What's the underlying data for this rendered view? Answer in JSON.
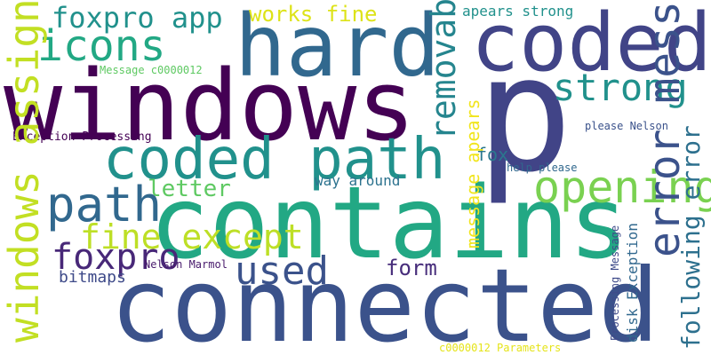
{
  "words": [
    {
      "text": "p",
      "color": "#414487"
    },
    {
      "text": "contains",
      "color": "#22A884"
    },
    {
      "text": "connected",
      "color": "#3B528B"
    },
    {
      "text": "windows",
      "color": "#440154"
    },
    {
      "text": "hard",
      "color": "#31688E"
    },
    {
      "text": "coded",
      "color": "#414487"
    },
    {
      "text": "coded path",
      "color": "#21918C"
    },
    {
      "text": "path",
      "color": "#31688E"
    },
    {
      "text": "icons",
      "color": "#22A884"
    },
    {
      "text": "foxpro app",
      "color": "#21918C"
    },
    {
      "text": "works fine",
      "color": "#DDE318"
    },
    {
      "text": "apears strong",
      "color": "#21918C"
    },
    {
      "text": "strong",
      "color": "#21918C"
    },
    {
      "text": "opening",
      "color": "#7AD151"
    },
    {
      "text": "used",
      "color": "#3B528B"
    },
    {
      "text": "foxpro",
      "color": "#482878"
    },
    {
      "text": "fine except",
      "color": "#BDDF26"
    },
    {
      "text": "letter",
      "color": "#5EC962"
    },
    {
      "text": "form",
      "color": "#472D7B"
    },
    {
      "text": "fox",
      "color": "#2A788E"
    },
    {
      "text": "bitmaps",
      "color": "#3E4A89"
    },
    {
      "text": "way around",
      "color": "#2C728E"
    },
    {
      "text": "removable drive",
      "color": "#25858E"
    },
    {
      "text": "error message",
      "color": "#3B528B"
    },
    {
      "text": "following error",
      "color": "#2D708E"
    },
    {
      "text": "windows assigns",
      "color": "#C2DF23"
    },
    {
      "text": "message apears",
      "color": "#F1E51D"
    },
    {
      "text": "disk Exception",
      "color": "#31688E"
    },
    {
      "text": "Processing Message",
      "color": "#3E4A89"
    },
    {
      "text": "Exception Processing",
      "color": "#440154"
    },
    {
      "text": "Message c0000012",
      "color": "#5EC962"
    },
    {
      "text": "please Nelson",
      "color": "#3B528B"
    },
    {
      "text": "help please",
      "color": "#31688E"
    },
    {
      "text": "Nelson Marmol",
      "color": "#481A6C"
    },
    {
      "text": "c0000012 Parameters",
      "color": "#E5E419"
    }
  ]
}
